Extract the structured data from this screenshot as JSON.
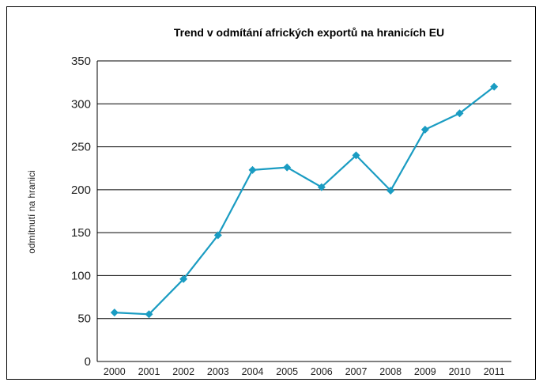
{
  "chart_data": {
    "type": "line",
    "title": "Trend v odmítání afrických exportů na hranicích EU",
    "xlabel": "",
    "ylabel": "odmítnutí na hranici",
    "categories": [
      "2000",
      "2001",
      "2002",
      "2003",
      "2004",
      "2005",
      "2006",
      "2007",
      "2008",
      "2009",
      "2010",
      "2011"
    ],
    "series": [
      {
        "values": [
          57,
          55,
          96,
          147,
          223,
          226,
          203,
          240,
          199,
          270,
          289,
          320
        ]
      }
    ],
    "ylim": [
      0,
      350
    ],
    "yticks": [
      0,
      50,
      100,
      150,
      200,
      250,
      300,
      350
    ],
    "grid": true,
    "legend": "none",
    "colors": {
      "line": "#1a9cc2",
      "marker": "#1a9cc2",
      "grid": "#000000",
      "axis": "#000000"
    }
  }
}
